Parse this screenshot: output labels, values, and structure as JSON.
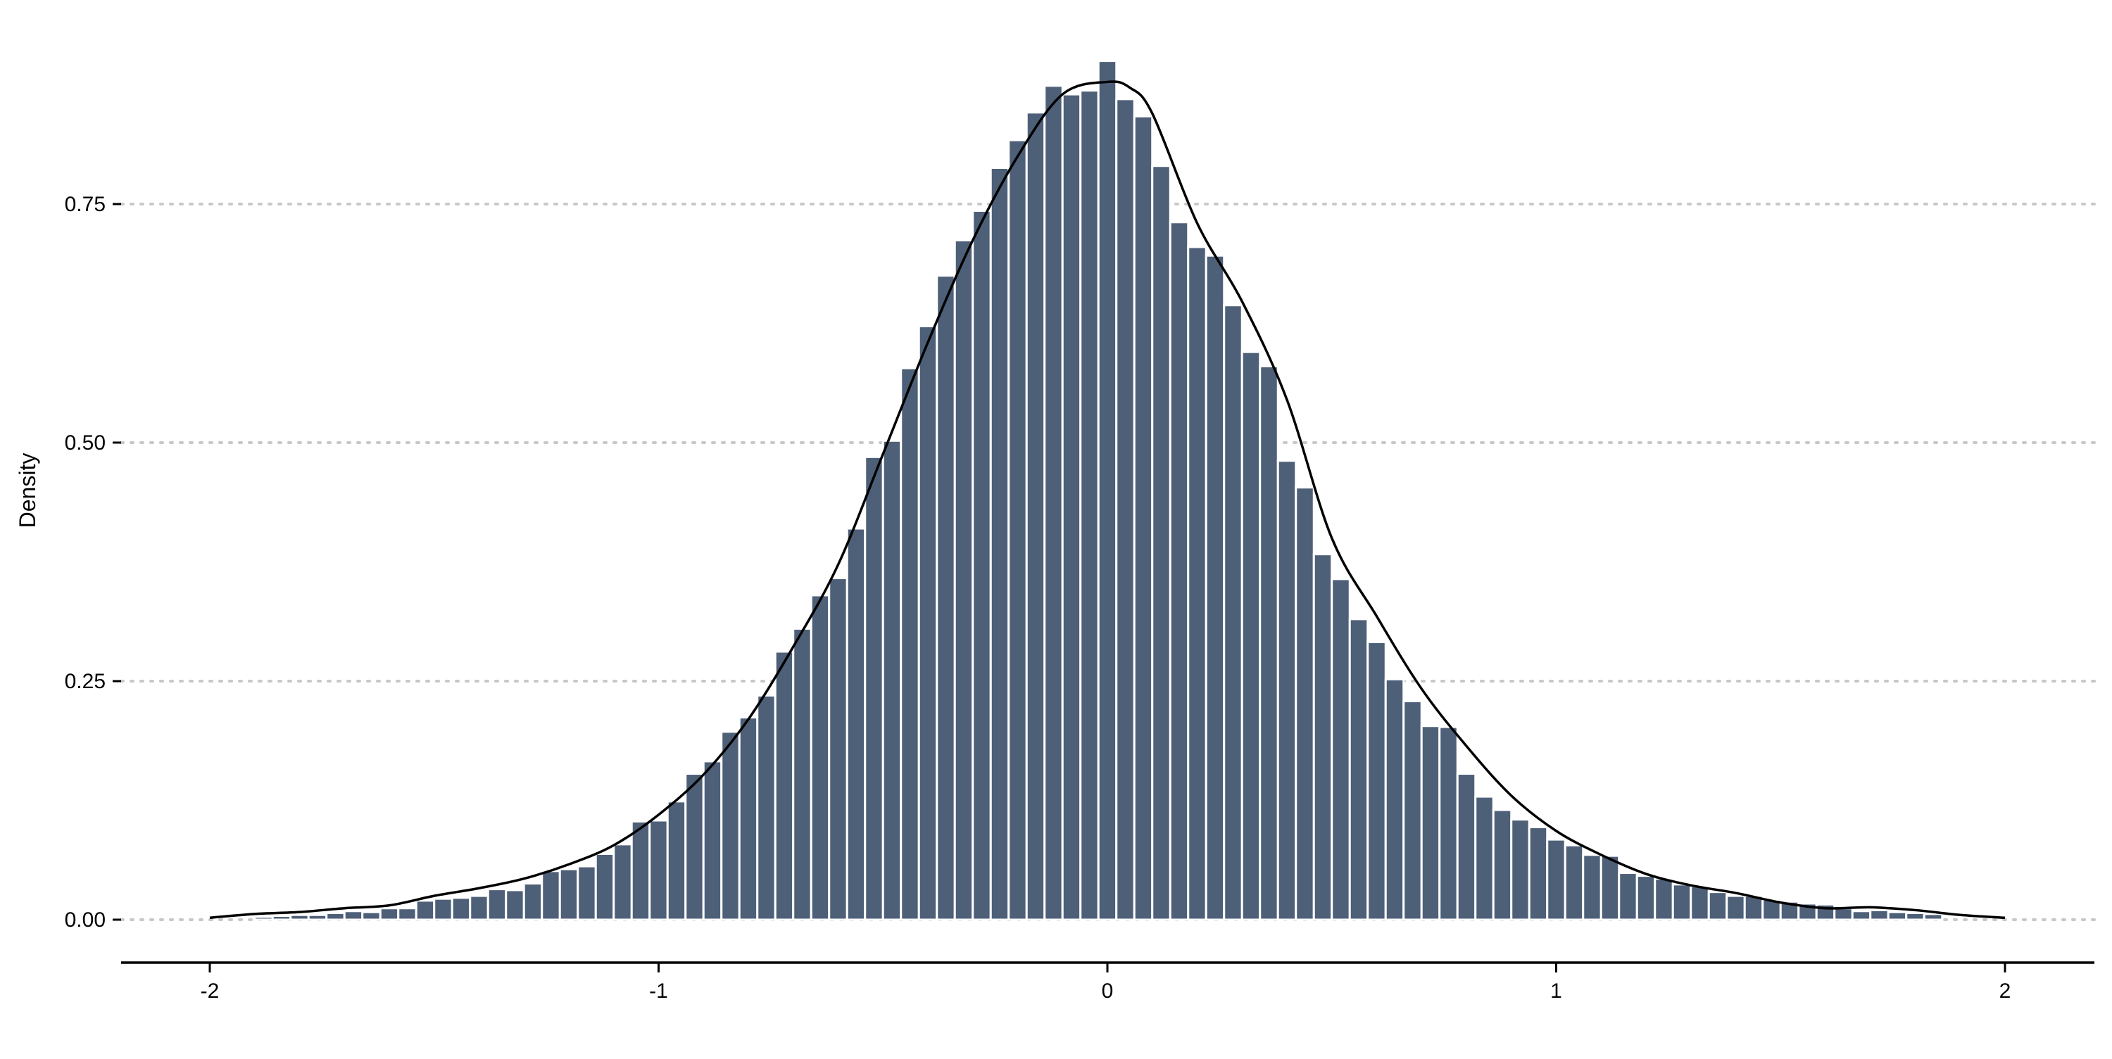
{
  "chart_data": {
    "type": "bar",
    "title": "",
    "xlabel": "",
    "ylabel": "Density",
    "xlim": [
      -2.2,
      2.2
    ],
    "ylim": [
      0,
      0.9
    ],
    "x_ticks": [
      -2,
      -1,
      0,
      1,
      2
    ],
    "x_tick_labels": [
      "-2",
      "-1",
      "0",
      "1",
      "2"
    ],
    "y_ticks": [
      0,
      0.25,
      0.5,
      0.75
    ],
    "y_tick_labels": [
      "0.00",
      "0.25",
      "0.50",
      "0.75"
    ],
    "grid": "horizontal dotted",
    "legend": "none",
    "bin_width": 0.04,
    "bin_centers": [
      -1.88,
      -1.84,
      -1.8,
      -1.76,
      -1.72,
      -1.68,
      -1.64,
      -1.6,
      -1.56,
      -1.52,
      -1.48,
      -1.44,
      -1.4,
      -1.36,
      -1.32,
      -1.28,
      -1.24,
      -1.2,
      -1.16,
      -1.12,
      -1.08,
      -1.04,
      -1.0,
      -0.96,
      -0.92,
      -0.88,
      -0.84,
      -0.8,
      -0.76,
      -0.72,
      -0.68,
      -0.64,
      -0.6,
      -0.56,
      -0.52,
      -0.48,
      -0.44,
      -0.4,
      -0.36,
      -0.32,
      -0.28,
      -0.24,
      -0.2,
      -0.16,
      -0.12,
      -0.08,
      -0.04,
      0.0,
      0.04,
      0.08,
      0.12,
      0.16,
      0.2,
      0.24,
      0.28,
      0.32,
      0.36,
      0.4,
      0.44,
      0.48,
      0.52,
      0.56,
      0.6,
      0.64,
      0.68,
      0.72,
      0.76,
      0.8,
      0.84,
      0.88,
      0.92,
      0.96,
      1.0,
      1.04,
      1.08,
      1.12,
      1.16,
      1.2,
      1.24,
      1.28,
      1.32,
      1.36,
      1.4,
      1.44,
      1.48,
      1.52,
      1.56,
      1.6,
      1.64,
      1.68,
      1.72,
      1.76,
      1.8,
      1.84
    ],
    "values": [
      0.003,
      0.004,
      0.005,
      0.005,
      0.007,
      0.009,
      0.008,
      0.012,
      0.012,
      0.02,
      0.022,
      0.023,
      0.025,
      0.032,
      0.031,
      0.038,
      0.051,
      0.053,
      0.056,
      0.069,
      0.079,
      0.103,
      0.104,
      0.124,
      0.153,
      0.166,
      0.197,
      0.212,
      0.235,
      0.281,
      0.305,
      0.34,
      0.358,
      0.41,
      0.485,
      0.502,
      0.578,
      0.622,
      0.675,
      0.712,
      0.743,
      0.788,
      0.817,
      0.846,
      0.874,
      0.865,
      0.869,
      0.9,
      0.86,
      0.842,
      0.79,
      0.731,
      0.705,
      0.696,
      0.644,
      0.595,
      0.58,
      0.481,
      0.453,
      0.383,
      0.357,
      0.315,
      0.291,
      0.252,
      0.229,
      0.203,
      0.202,
      0.153,
      0.129,
      0.115,
      0.105,
      0.097,
      0.084,
      0.078,
      0.068,
      0.067,
      0.049,
      0.046,
      0.043,
      0.037,
      0.035,
      0.029,
      0.025,
      0.025,
      0.021,
      0.019,
      0.017,
      0.016,
      0.012,
      0.009,
      0.01,
      0.008,
      0.007,
      0.006
    ],
    "density_curve": {
      "x": [
        -2.0,
        -1.9,
        -1.8,
        -1.7,
        -1.6,
        -1.5,
        -1.4,
        -1.3,
        -1.2,
        -1.1,
        -1.0,
        -0.9,
        -0.8,
        -0.7,
        -0.6,
        -0.5,
        -0.4,
        -0.3,
        -0.2,
        -0.1,
        0.0,
        0.05,
        0.1,
        0.2,
        0.3,
        0.4,
        0.5,
        0.6,
        0.7,
        0.8,
        0.9,
        1.0,
        1.1,
        1.2,
        1.3,
        1.4,
        1.5,
        1.6,
        1.7,
        1.8,
        1.9,
        2.0
      ],
      "y": [
        0.002,
        0.006,
        0.008,
        0.012,
        0.015,
        0.025,
        0.033,
        0.043,
        0.058,
        0.078,
        0.11,
        0.152,
        0.21,
        0.286,
        0.372,
        0.488,
        0.605,
        0.712,
        0.8,
        0.865,
        0.878,
        0.872,
        0.845,
        0.73,
        0.648,
        0.545,
        0.4,
        0.318,
        0.242,
        0.182,
        0.13,
        0.093,
        0.068,
        0.048,
        0.036,
        0.028,
        0.018,
        0.012,
        0.013,
        0.01,
        0.005,
        0.002
      ]
    }
  },
  "colors": {
    "bar_fill": "#4e5f78",
    "bar_stroke": "#ffffff",
    "curve": "#000000",
    "grid": "#c8c8c8",
    "axis": "#000000"
  }
}
